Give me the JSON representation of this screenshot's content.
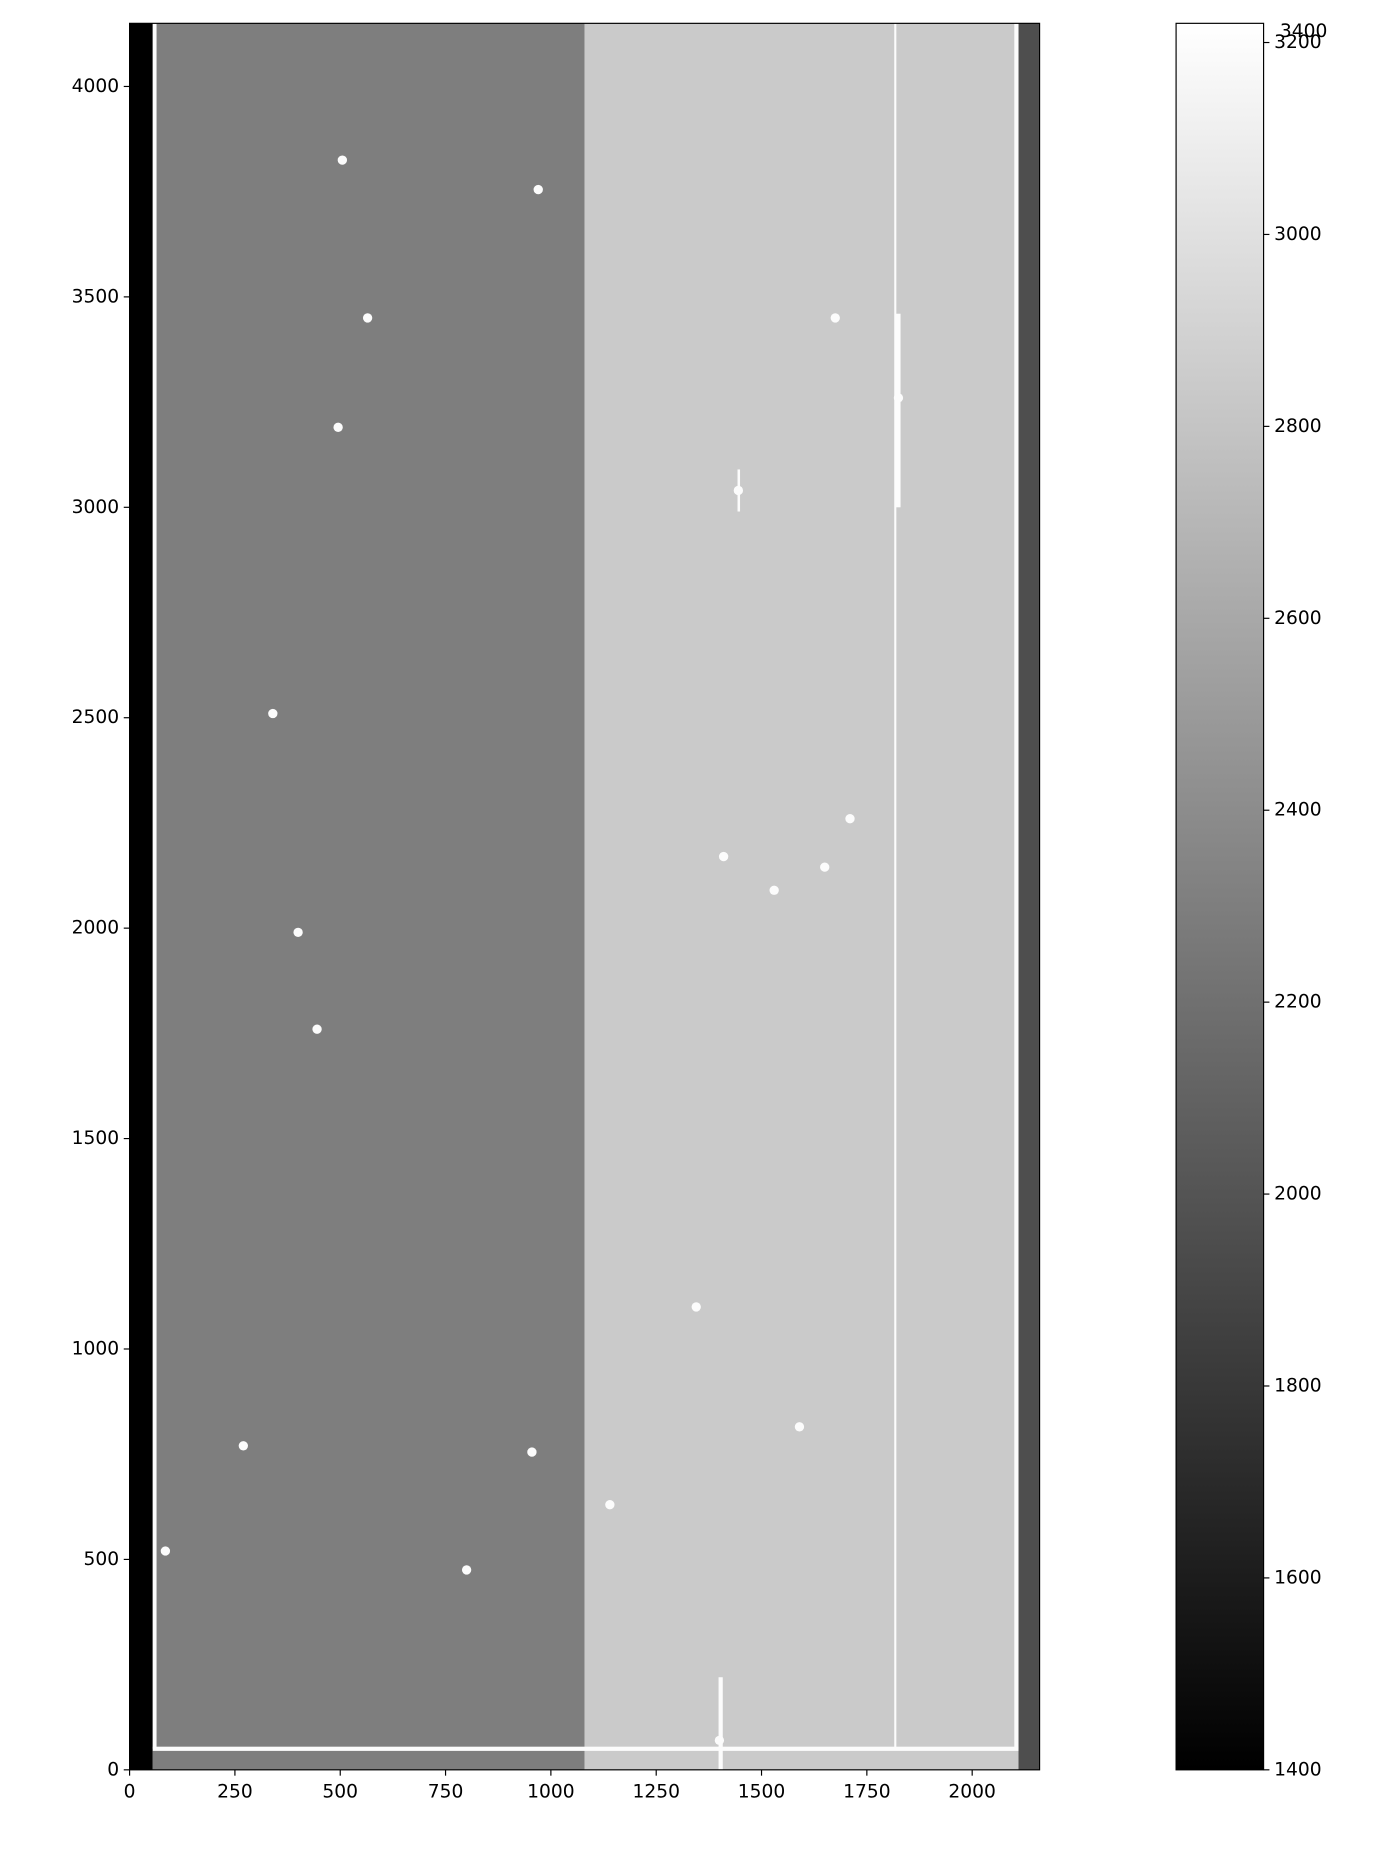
{
  "chart_data": {
    "type": "image",
    "colormap": "gray",
    "xlim": [
      0,
      2160
    ],
    "ylim": [
      0,
      4150
    ],
    "xticks": [
      0,
      250,
      500,
      750,
      1000,
      1250,
      1500,
      1750,
      2000
    ],
    "yticks": [
      0,
      500,
      1000,
      1500,
      2000,
      2500,
      3000,
      3500,
      4000
    ],
    "clim": [
      1400,
      3220
    ],
    "cticks": [
      1400,
      1600,
      1800,
      2000,
      2200,
      2400,
      2600,
      2800,
      3000,
      3200
    ],
    "colorbar_overlap_label": "3400",
    "regions": [
      {
        "x": [
          0,
          55
        ],
        "y": [
          0,
          4150
        ],
        "value": 1400
      },
      {
        "x": [
          55,
          1080
        ],
        "y": [
          0,
          4150
        ],
        "value": 2300
      },
      {
        "x": [
          1080,
          2110
        ],
        "y": [
          0,
          4150
        ],
        "value": 2840
      },
      {
        "x": [
          2110,
          2160
        ],
        "y": [
          0,
          4150
        ],
        "value": 1960
      },
      {
        "x": [
          55,
          64
        ],
        "y": [
          50,
          4150
        ],
        "value": 3200
      },
      {
        "x": [
          55,
          2110
        ],
        "y": [
          45,
          55
        ],
        "value": 3200
      },
      {
        "x": [
          2100,
          2110
        ],
        "y": [
          50,
          4150
        ],
        "value": 3200
      },
      {
        "x": [
          1815,
          1820
        ],
        "y": [
          50,
          4150
        ],
        "value": 3200
      },
      {
        "x": [
          1818,
          1830
        ],
        "y": [
          3000,
          3460
        ],
        "value": 3200
      },
      {
        "x": [
          1398,
          1408
        ],
        "y": [
          0,
          220
        ],
        "value": 3200
      },
      {
        "x": [
          1443,
          1449
        ],
        "y": [
          2990,
          3090
        ],
        "value": 3200
      }
    ],
    "sources": [
      {
        "x": 970,
        "y": 3755,
        "value": 3200
      },
      {
        "x": 1825,
        "y": 3260,
        "value": 3200
      },
      {
        "x": 1445,
        "y": 3040,
        "value": 3200
      },
      {
        "x": 340,
        "y": 2510,
        "value": 3200
      },
      {
        "x": 400,
        "y": 1990,
        "value": 3200
      },
      {
        "x": 445,
        "y": 1760,
        "value": 3200
      },
      {
        "x": 1590,
        "y": 815,
        "value": 3200
      },
      {
        "x": 1400,
        "y": 70,
        "value": 3200
      },
      {
        "x": 1345,
        "y": 1100,
        "value": 3200
      },
      {
        "x": 1410,
        "y": 2170,
        "value": 3200
      },
      {
        "x": 1650,
        "y": 2145,
        "value": 3200
      },
      {
        "x": 505,
        "y": 3825,
        "value": 3200
      },
      {
        "x": 565,
        "y": 3450,
        "value": 3200
      },
      {
        "x": 495,
        "y": 3190,
        "value": 3200
      },
      {
        "x": 270,
        "y": 770,
        "value": 3200
      },
      {
        "x": 800,
        "y": 475,
        "value": 3200
      },
      {
        "x": 1140,
        "y": 630,
        "value": 3200
      },
      {
        "x": 1530,
        "y": 2090,
        "value": 3200
      },
      {
        "x": 85,
        "y": 520,
        "value": 3200
      },
      {
        "x": 955,
        "y": 755,
        "value": 3200
      },
      {
        "x": 1675,
        "y": 3450,
        "value": 3200
      },
      {
        "x": 1710,
        "y": 2260,
        "value": 3200
      }
    ]
  }
}
